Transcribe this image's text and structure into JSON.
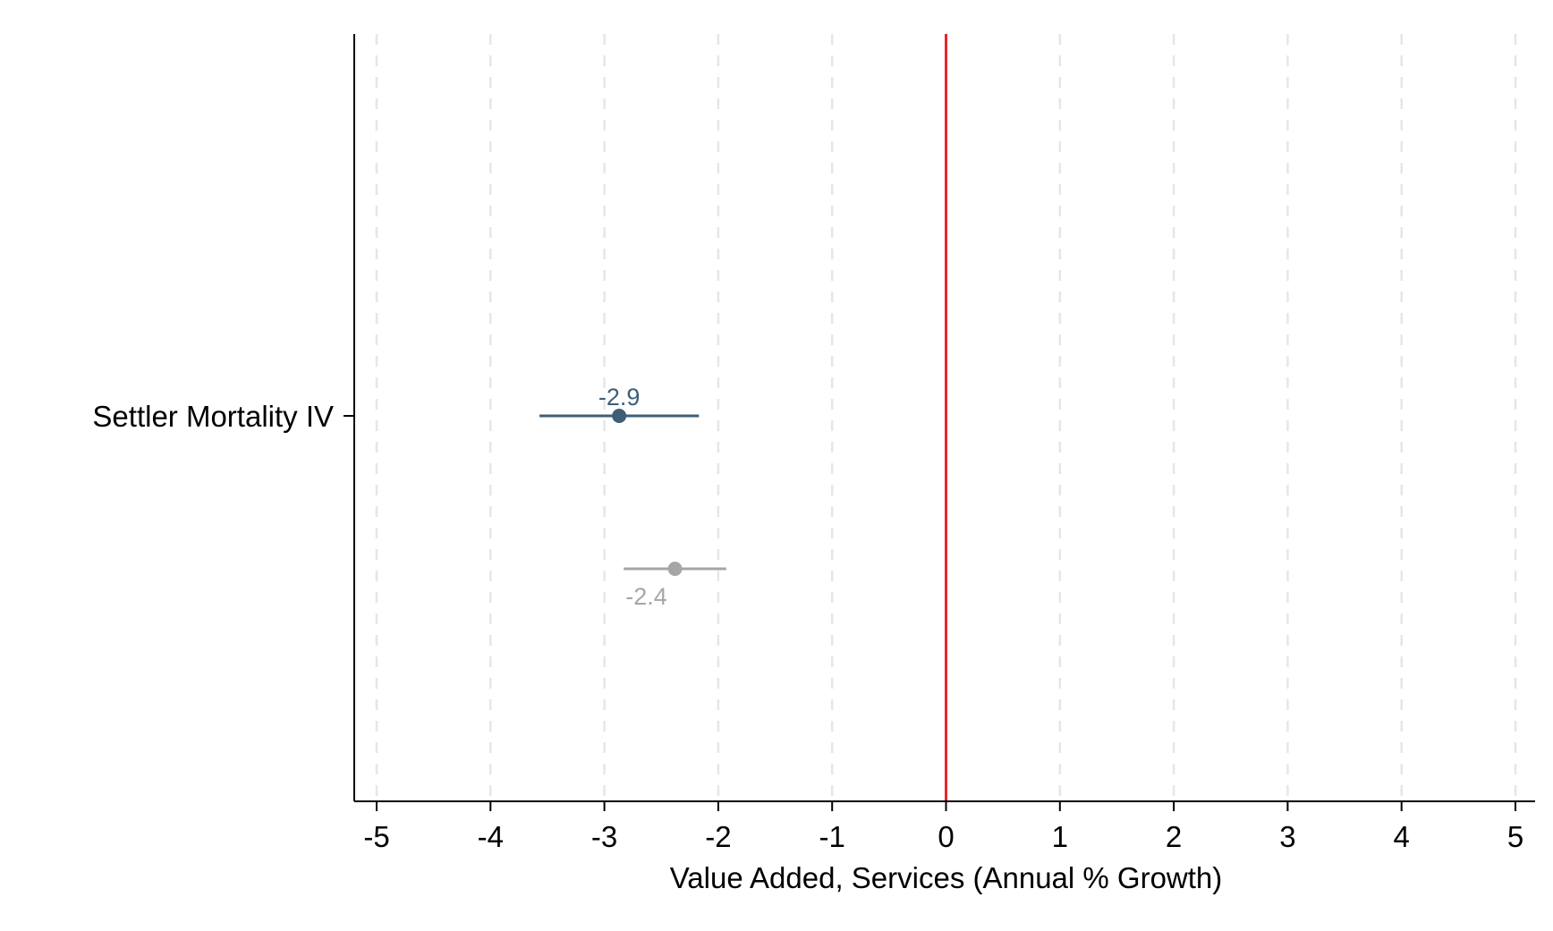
{
  "chart_data": {
    "type": "scatter",
    "subtype": "coefficient-plot",
    "title": "",
    "xlabel": "Value Added, Services (Annual % Growth)",
    "ylabel": "",
    "xlim": [
      -5,
      5
    ],
    "xticks": [
      -5,
      -4,
      -3,
      -2,
      -1,
      0,
      1,
      2,
      3,
      4,
      5
    ],
    "categories": [
      "Settler Mortality IV"
    ],
    "grid": "vertical dashed",
    "reference_line": {
      "x": 0,
      "color": "#e8252b"
    },
    "legend": "none",
    "series": [
      {
        "category": "Settler Mortality IV",
        "estimate": -2.87,
        "ci_low": -3.57,
        "ci_high": -2.17,
        "label": "-2.9",
        "color": "#3e5e77",
        "label_position": "above"
      },
      {
        "category": "Settler Mortality IV",
        "estimate": -2.38,
        "ci_low": -2.83,
        "ci_high": -1.93,
        "label": "-2.4",
        "color": "#a6a6a6",
        "label_position": "below"
      }
    ]
  }
}
